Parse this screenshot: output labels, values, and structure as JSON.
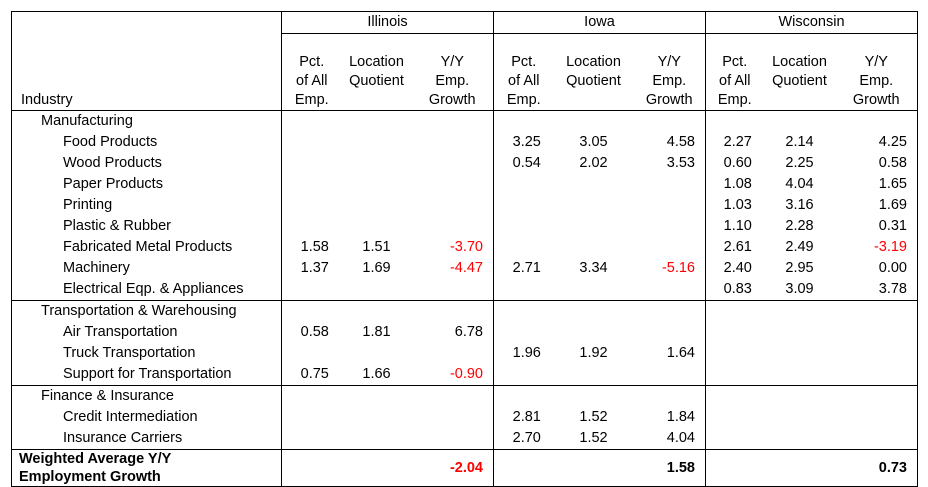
{
  "states": [
    "Illinois",
    "Iowa",
    "Wisconsin"
  ],
  "col_headers": {
    "industry": "Industry",
    "pct_line1": "Pct.",
    "pct_line2": "of All",
    "pct_line3": "Emp.",
    "lq_line1": "Location",
    "lq_line2": "Quotient",
    "yy_line1": "Y/Y",
    "yy_line2": "Emp.",
    "yy_line3": "Growth"
  },
  "groups": [
    {
      "name": "Manufacturing",
      "rows": [
        {
          "industry": "Food Products",
          "illinois": {
            "pct": "",
            "lq": "",
            "yy": ""
          },
          "iowa": {
            "pct": "3.25",
            "lq": "3.05",
            "yy": "4.58"
          },
          "wisconsin": {
            "pct": "2.27",
            "lq": "2.14",
            "yy": "4.25"
          }
        },
        {
          "industry": "Wood Products",
          "illinois": {
            "pct": "",
            "lq": "",
            "yy": ""
          },
          "iowa": {
            "pct": "0.54",
            "lq": "2.02",
            "yy": "3.53"
          },
          "wisconsin": {
            "pct": "0.60",
            "lq": "2.25",
            "yy": "0.58"
          }
        },
        {
          "industry": "Paper Products",
          "illinois": {
            "pct": "",
            "lq": "",
            "yy": ""
          },
          "iowa": {
            "pct": "",
            "lq": "",
            "yy": ""
          },
          "wisconsin": {
            "pct": "1.08",
            "lq": "4.04",
            "yy": "1.65"
          }
        },
        {
          "industry": "Printing",
          "illinois": {
            "pct": "",
            "lq": "",
            "yy": ""
          },
          "iowa": {
            "pct": "",
            "lq": "",
            "yy": ""
          },
          "wisconsin": {
            "pct": "1.03",
            "lq": "3.16",
            "yy": "1.69"
          }
        },
        {
          "industry": "Plastic & Rubber",
          "illinois": {
            "pct": "",
            "lq": "",
            "yy": ""
          },
          "iowa": {
            "pct": "",
            "lq": "",
            "yy": ""
          },
          "wisconsin": {
            "pct": "1.10",
            "lq": "2.28",
            "yy": "0.31"
          }
        },
        {
          "industry": "Fabricated Metal Products",
          "illinois": {
            "pct": "1.58",
            "lq": "1.51",
            "yy": "-3.70"
          },
          "iowa": {
            "pct": "",
            "lq": "",
            "yy": ""
          },
          "wisconsin": {
            "pct": "2.61",
            "lq": "2.49",
            "yy": "-3.19"
          }
        },
        {
          "industry": "Machinery",
          "illinois": {
            "pct": "1.37",
            "lq": "1.69",
            "yy": "-4.47"
          },
          "iowa": {
            "pct": "2.71",
            "lq": "3.34",
            "yy": "-5.16"
          },
          "wisconsin": {
            "pct": "2.40",
            "lq": "2.95",
            "yy": "0.00"
          }
        },
        {
          "industry": "Electrical Eqp. & Appliances",
          "illinois": {
            "pct": "",
            "lq": "",
            "yy": ""
          },
          "iowa": {
            "pct": "",
            "lq": "",
            "yy": ""
          },
          "wisconsin": {
            "pct": "0.83",
            "lq": "3.09",
            "yy": "3.78"
          }
        }
      ]
    },
    {
      "name": "Transportation & Warehousing",
      "rows": [
        {
          "industry": "Air Transportation",
          "illinois": {
            "pct": "0.58",
            "lq": "1.81",
            "yy": "6.78"
          },
          "iowa": {
            "pct": "",
            "lq": "",
            "yy": ""
          },
          "wisconsin": {
            "pct": "",
            "lq": "",
            "yy": ""
          }
        },
        {
          "industry": "Truck Transportation",
          "illinois": {
            "pct": "",
            "lq": "",
            "yy": ""
          },
          "iowa": {
            "pct": "1.96",
            "lq": "1.92",
            "yy": "1.64"
          },
          "wisconsin": {
            "pct": "",
            "lq": "",
            "yy": ""
          }
        },
        {
          "industry": "Support for Transportation",
          "illinois": {
            "pct": "0.75",
            "lq": "1.66",
            "yy": "-0.90"
          },
          "iowa": {
            "pct": "",
            "lq": "",
            "yy": ""
          },
          "wisconsin": {
            "pct": "",
            "lq": "",
            "yy": ""
          }
        }
      ]
    },
    {
      "name": "Finance & Insurance",
      "rows": [
        {
          "industry": "Credit Intermediation",
          "illinois": {
            "pct": "",
            "lq": "",
            "yy": ""
          },
          "iowa": {
            "pct": "2.81",
            "lq": "1.52",
            "yy": "1.84"
          },
          "wisconsin": {
            "pct": "",
            "lq": "",
            "yy": ""
          }
        },
        {
          "industry": "Insurance Carriers",
          "illinois": {
            "pct": "",
            "lq": "",
            "yy": ""
          },
          "iowa": {
            "pct": "2.70",
            "lq": "1.52",
            "yy": "4.04"
          },
          "wisconsin": {
            "pct": "",
            "lq": "",
            "yy": ""
          }
        }
      ]
    }
  ],
  "total": {
    "label_line1": "Weighted Average Y/Y",
    "label_line2": "Employment Growth",
    "illinois": "-2.04",
    "iowa": "1.58",
    "wisconsin": "0.73"
  },
  "colors": {
    "negative": "#ff0000",
    "border": "#000000"
  }
}
